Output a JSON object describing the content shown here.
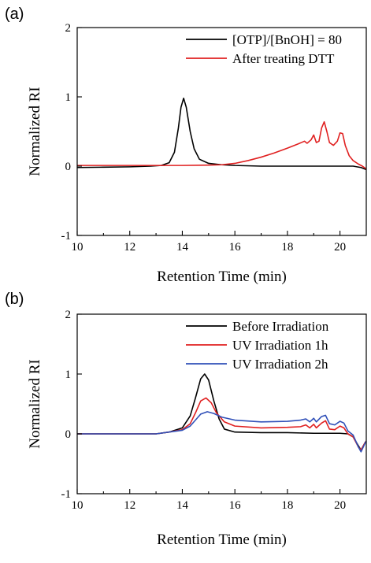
{
  "chart_data": [
    {
      "panel": "(a)",
      "type": "line",
      "xlabel": "Retention Time (min)",
      "ylabel": "Normalized RI",
      "xlim": [
        10,
        21
      ],
      "ylim": [
        -1,
        2
      ],
      "xticks": [
        "10",
        "12",
        "14",
        "16",
        "18",
        "20"
      ],
      "yticks": [
        "-1",
        "0",
        "1",
        "2"
      ],
      "legend_position": "top-right",
      "series": [
        {
          "name": "[OTP]/[BnOH] = 80",
          "color": "#000000",
          "points": [
            [
              10,
              -0.02
            ],
            [
              11,
              -0.015
            ],
            [
              12,
              -0.01
            ],
            [
              12.8,
              0.0
            ],
            [
              13.2,
              0.01
            ],
            [
              13.5,
              0.05
            ],
            [
              13.7,
              0.2
            ],
            [
              13.85,
              0.55
            ],
            [
              13.95,
              0.85
            ],
            [
              14.05,
              0.98
            ],
            [
              14.15,
              0.85
            ],
            [
              14.3,
              0.5
            ],
            [
              14.45,
              0.25
            ],
            [
              14.65,
              0.1
            ],
            [
              15,
              0.04
            ],
            [
              15.5,
              0.02
            ],
            [
              16,
              0.01
            ],
            [
              17,
              0.0
            ],
            [
              18,
              0.0
            ],
            [
              19,
              0.0
            ],
            [
              20,
              0.0
            ],
            [
              20.5,
              0.0
            ],
            [
              20.8,
              -0.02
            ],
            [
              21,
              -0.05
            ]
          ]
        },
        {
          "name": "After treating DTT",
          "color": "#e02020",
          "points": [
            [
              10,
              0.01
            ],
            [
              12,
              0.01
            ],
            [
              14,
              0.01
            ],
            [
              15,
              0.015
            ],
            [
              15.5,
              0.02
            ],
            [
              16,
              0.04
            ],
            [
              16.5,
              0.08
            ],
            [
              17,
              0.13
            ],
            [
              17.5,
              0.19
            ],
            [
              18,
              0.26
            ],
            [
              18.4,
              0.32
            ],
            [
              18.65,
              0.36
            ],
            [
              18.75,
              0.33
            ],
            [
              18.9,
              0.38
            ],
            [
              19.0,
              0.45
            ],
            [
              19.1,
              0.34
            ],
            [
              19.2,
              0.36
            ],
            [
              19.3,
              0.55
            ],
            [
              19.4,
              0.64
            ],
            [
              19.5,
              0.5
            ],
            [
              19.6,
              0.34
            ],
            [
              19.75,
              0.3
            ],
            [
              19.9,
              0.36
            ],
            [
              20.0,
              0.48
            ],
            [
              20.1,
              0.47
            ],
            [
              20.2,
              0.3
            ],
            [
              20.35,
              0.15
            ],
            [
              20.5,
              0.08
            ],
            [
              20.7,
              0.03
            ],
            [
              20.85,
              0.0
            ],
            [
              21,
              -0.04
            ]
          ]
        }
      ]
    },
    {
      "panel": "(b)",
      "type": "line",
      "xlabel": "Retention Time (min)",
      "ylabel": "Normalized RI",
      "xlim": [
        10,
        21
      ],
      "ylim": [
        -1,
        2
      ],
      "xticks": [
        "10",
        "12",
        "14",
        "16",
        "18",
        "20"
      ],
      "yticks": [
        "-1",
        "0",
        "1",
        "2"
      ],
      "legend_position": "top-right",
      "series": [
        {
          "name": "Before Irradiation",
          "color": "#000000",
          "points": [
            [
              10,
              0.0
            ],
            [
              12,
              0.0
            ],
            [
              13,
              0.0
            ],
            [
              13.5,
              0.03
            ],
            [
              14,
              0.1
            ],
            [
              14.3,
              0.3
            ],
            [
              14.5,
              0.6
            ],
            [
              14.7,
              0.92
            ],
            [
              14.85,
              1.0
            ],
            [
              15.0,
              0.9
            ],
            [
              15.2,
              0.55
            ],
            [
              15.4,
              0.25
            ],
            [
              15.6,
              0.08
            ],
            [
              16,
              0.03
            ],
            [
              17,
              0.02
            ],
            [
              18,
              0.02
            ],
            [
              19,
              0.01
            ],
            [
              20,
              0.01
            ],
            [
              20.3,
              0.0
            ],
            [
              20.5,
              -0.05
            ],
            [
              20.7,
              -0.2
            ],
            [
              20.8,
              -0.27
            ],
            [
              20.95,
              -0.15
            ],
            [
              21,
              -0.12
            ]
          ]
        },
        {
          "name": "UV Irradiation 1h",
          "color": "#e02020",
          "points": [
            [
              10,
              0.0
            ],
            [
              12,
              0.0
            ],
            [
              13,
              0.0
            ],
            [
              13.5,
              0.03
            ],
            [
              14,
              0.07
            ],
            [
              14.3,
              0.17
            ],
            [
              14.5,
              0.35
            ],
            [
              14.7,
              0.55
            ],
            [
              14.9,
              0.6
            ],
            [
              15.1,
              0.52
            ],
            [
              15.3,
              0.35
            ],
            [
              15.6,
              0.2
            ],
            [
              16,
              0.13
            ],
            [
              17,
              0.1
            ],
            [
              18,
              0.11
            ],
            [
              18.5,
              0.12
            ],
            [
              18.7,
              0.15
            ],
            [
              18.85,
              0.1
            ],
            [
              19.0,
              0.16
            ],
            [
              19.1,
              0.1
            ],
            [
              19.3,
              0.18
            ],
            [
              19.45,
              0.22
            ],
            [
              19.6,
              0.08
            ],
            [
              19.8,
              0.07
            ],
            [
              20.0,
              0.13
            ],
            [
              20.15,
              0.1
            ],
            [
              20.3,
              0.0
            ],
            [
              20.5,
              -0.05
            ],
            [
              20.7,
              -0.22
            ],
            [
              20.8,
              -0.27
            ],
            [
              20.95,
              -0.15
            ],
            [
              21,
              -0.12
            ]
          ]
        },
        {
          "name": "UV Irradiation 2h",
          "color": "#3050b8",
          "points": [
            [
              10,
              0.0
            ],
            [
              12,
              0.0
            ],
            [
              13,
              0.0
            ],
            [
              13.5,
              0.03
            ],
            [
              14,
              0.06
            ],
            [
              14.3,
              0.13
            ],
            [
              14.5,
              0.23
            ],
            [
              14.7,
              0.33
            ],
            [
              14.95,
              0.37
            ],
            [
              15.2,
              0.34
            ],
            [
              15.5,
              0.28
            ],
            [
              16,
              0.23
            ],
            [
              17,
              0.2
            ],
            [
              18,
              0.21
            ],
            [
              18.5,
              0.23
            ],
            [
              18.7,
              0.25
            ],
            [
              18.85,
              0.2
            ],
            [
              19.0,
              0.26
            ],
            [
              19.1,
              0.2
            ],
            [
              19.3,
              0.29
            ],
            [
              19.45,
              0.31
            ],
            [
              19.6,
              0.17
            ],
            [
              19.8,
              0.15
            ],
            [
              20.0,
              0.21
            ],
            [
              20.15,
              0.18
            ],
            [
              20.3,
              0.05
            ],
            [
              20.5,
              -0.02
            ],
            [
              20.7,
              -0.22
            ],
            [
              20.8,
              -0.3
            ],
            [
              20.95,
              -0.16
            ],
            [
              21,
              -0.12
            ]
          ]
        }
      ]
    }
  ]
}
